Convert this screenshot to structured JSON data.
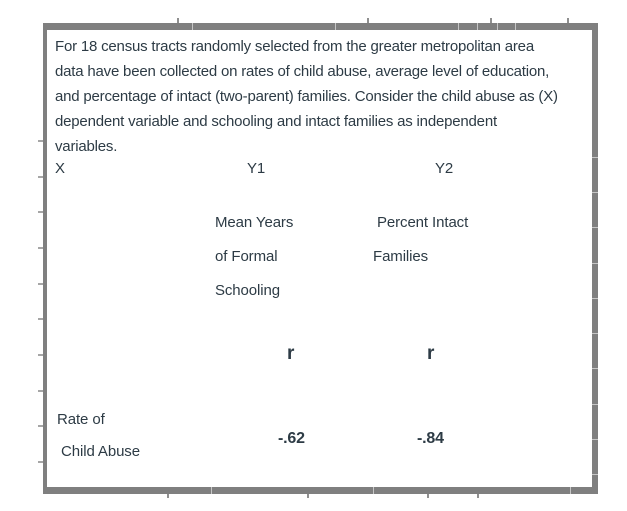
{
  "page": {
    "background_color": "#ffffff"
  },
  "question_box": {
    "border_color": "#7f7f7f",
    "text_color": "#2d3b45",
    "intro_lines": [
      "For 18 census tracts randomly selected from the greater metropolitan area",
      "data have been collected on rates of child abuse, average level of education,",
      "and percentage of intact (two-parent) families. Consider the child abuse as (X)",
      "dependent variable and schooling and intact families as independent",
      "variables."
    ],
    "matrix": {
      "x_header": "X",
      "y1_header": "Y1",
      "y2_header": "Y2",
      "y1_description_lines": [
        "Mean Years",
        "of Formal",
        "Schooling"
      ],
      "y2_description_lines": [
        "Percent Intact",
        "Families"
      ],
      "y1_stat_header": "r",
      "y2_stat_header": "r",
      "row_label_line1": "Rate of",
      "row_label_line2": "Child Abuse",
      "y1_correlation": "-.62",
      "y2_correlation": "-.84"
    }
  }
}
